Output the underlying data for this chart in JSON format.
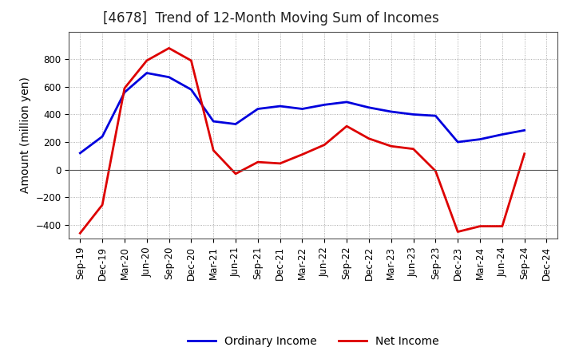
{
  "title": "[4678]  Trend of 12-Month Moving Sum of Incomes",
  "ylabel": "Amount (million yen)",
  "x_labels": [
    "Sep-19",
    "Dec-19",
    "Mar-20",
    "Jun-20",
    "Sep-20",
    "Dec-20",
    "Mar-21",
    "Jun-21",
    "Sep-21",
    "Dec-21",
    "Mar-22",
    "Jun-22",
    "Sep-22",
    "Dec-22",
    "Mar-23",
    "Jun-23",
    "Sep-23",
    "Dec-23",
    "Mar-24",
    "Jun-24",
    "Sep-24",
    "Dec-24"
  ],
  "ordinary_income": [
    120,
    240,
    560,
    700,
    670,
    580,
    350,
    330,
    440,
    460,
    440,
    470,
    490,
    450,
    420,
    400,
    390,
    200,
    220,
    255,
    285,
    null
  ],
  "net_income": [
    -460,
    -255,
    590,
    790,
    880,
    790,
    140,
    -30,
    55,
    45,
    110,
    180,
    315,
    225,
    170,
    150,
    -10,
    -450,
    -410,
    -410,
    115,
    null
  ],
  "ordinary_color": "#0000dd",
  "net_color": "#dd0000",
  "ylim": [
    -500,
    1000
  ],
  "yticks": [
    -400,
    -200,
    0,
    200,
    400,
    600,
    800
  ],
  "background_color": "#ffffff",
  "plot_bg_color": "#ffffff",
  "grid_color": "#999999",
  "legend_labels": [
    "Ordinary Income",
    "Net Income"
  ],
  "line_width": 2.0,
  "title_fontsize": 12,
  "label_fontsize": 10,
  "tick_fontsize": 8.5
}
